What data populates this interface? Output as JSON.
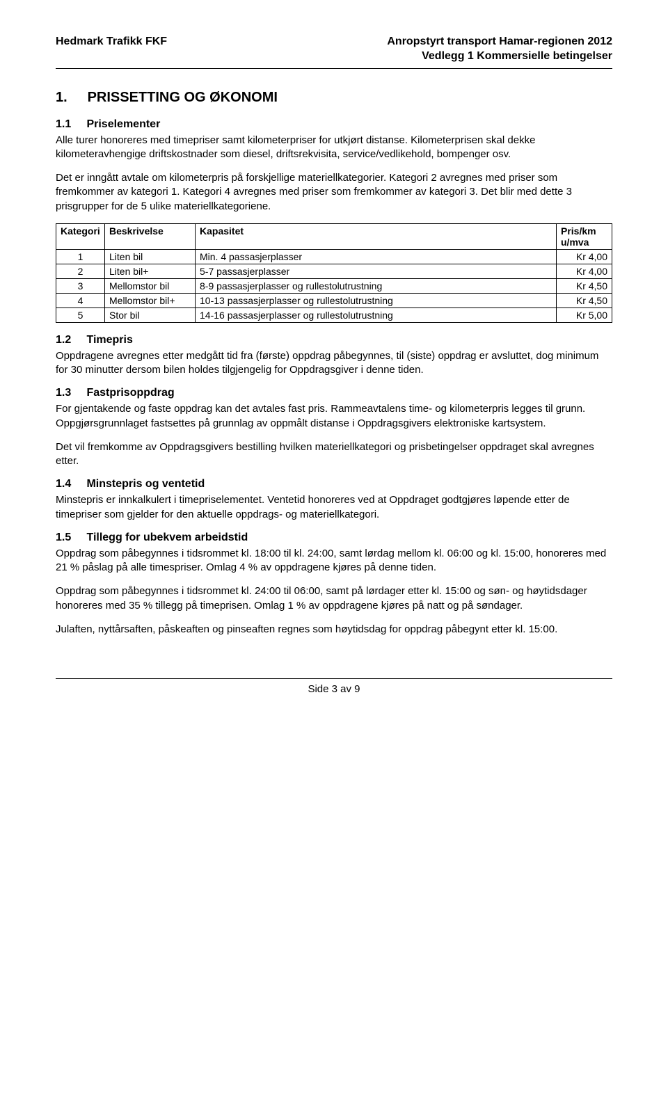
{
  "header": {
    "left": "Hedmark Trafikk FKF",
    "right_line1": "Anropstyrt transport Hamar-regionen 2012",
    "right_line2": "Vedlegg 1 Kommersielle betingelser"
  },
  "section1": {
    "number": "1.",
    "title": "PRISSETTING OG ØKONOMI"
  },
  "s11": {
    "number": "1.1",
    "title": "Priselementer",
    "p1": "Alle turer honoreres med timepriser samt kilometerpriser for utkjørt distanse. Kilometerprisen skal dekke kilometeravhengige driftskostnader som diesel, driftsrekvisita, service/vedlikehold, bompenger osv.",
    "p2": "Det er inngått avtale om kilometerpris på forskjellige materiellkategorier. Kategori 2 avregnes med priser som fremkommer av kategori 1. Kategori 4 avregnes med priser som fremkommer av kategori 3. Det blir med dette 3 prisgrupper for de 5 ulike materiellkategoriene."
  },
  "table": {
    "headers": {
      "kategori": "Kategori",
      "beskrivelse": "Beskrivelse",
      "kapasitet": "Kapasitet",
      "pris": "Pris/km u/mva"
    },
    "rows": [
      {
        "kat": "1",
        "besk": "Liten bil",
        "kap": "Min. 4 passasjerplasser",
        "pris": "Kr 4,00"
      },
      {
        "kat": "2",
        "besk": "Liten bil+",
        "kap": "5-7 passasjerplasser",
        "pris": "Kr 4,00"
      },
      {
        "kat": "3",
        "besk": "Mellomstor bil",
        "kap": "8-9 passasjerplasser og rullestolutrustning",
        "pris": "Kr 4,50"
      },
      {
        "kat": "4",
        "besk": "Mellomstor bil+",
        "kap": "10-13 passasjerplasser og rullestolutrustning",
        "pris": "Kr 4,50"
      },
      {
        "kat": "5",
        "besk": "Stor bil",
        "kap": "14-16 passasjerplasser og rullestolutrustning",
        "pris": "Kr 5,00"
      }
    ]
  },
  "s12": {
    "number": "1.2",
    "title": "Timepris",
    "p1": "Oppdragene avregnes etter medgått tid fra (første) oppdrag påbegynnes, til (siste) oppdrag er avsluttet, dog minimum for 30 minutter dersom bilen holdes tilgjengelig for Oppdragsgiver i denne tiden."
  },
  "s13": {
    "number": "1.3",
    "title": "Fastprisoppdrag",
    "p1": "For gjentakende og faste oppdrag kan det avtales fast pris. Rammeavtalens time- og kilometerpris legges til grunn. Oppgjørsgrunnlaget fastsettes på grunnlag av oppmålt distanse i Oppdragsgivers elektroniske kartsystem.",
    "p2": "Det vil fremkomme av Oppdragsgivers bestilling hvilken materiellkategori og prisbetingelser oppdraget skal avregnes etter."
  },
  "s14": {
    "number": "1.4",
    "title": "Minstepris og ventetid",
    "p1": "Minstepris er innkalkulert i timepriselementet. Ventetid honoreres ved at Oppdraget godtgjøres løpende etter de timepriser som gjelder for den aktuelle oppdrags- og materiellkategori."
  },
  "s15": {
    "number": "1.5",
    "title": "Tillegg for ubekvem arbeidstid",
    "p1": "Oppdrag som påbegynnes i tidsrommet kl. 18:00 til kl. 24:00, samt lørdag mellom kl. 06:00 og kl. 15:00, honoreres med 21 % påslag på alle timespriser. Omlag 4 % av oppdragene kjøres på denne tiden.",
    "p2": "Oppdrag som påbegynnes i tidsrommet kl. 24:00 til 06:00, samt på lørdager etter kl. 15:00 og søn- og høytidsdager honoreres med 35 % tillegg på timeprisen. Omlag 1 % av oppdragene kjøres på natt og på søndager.",
    "p3": "Julaften, nyttårsaften, påskeaften og pinseaften regnes som høytidsdag for oppdrag påbegynt etter kl. 15:00."
  },
  "footer": {
    "text": "Side 3 av 9"
  }
}
